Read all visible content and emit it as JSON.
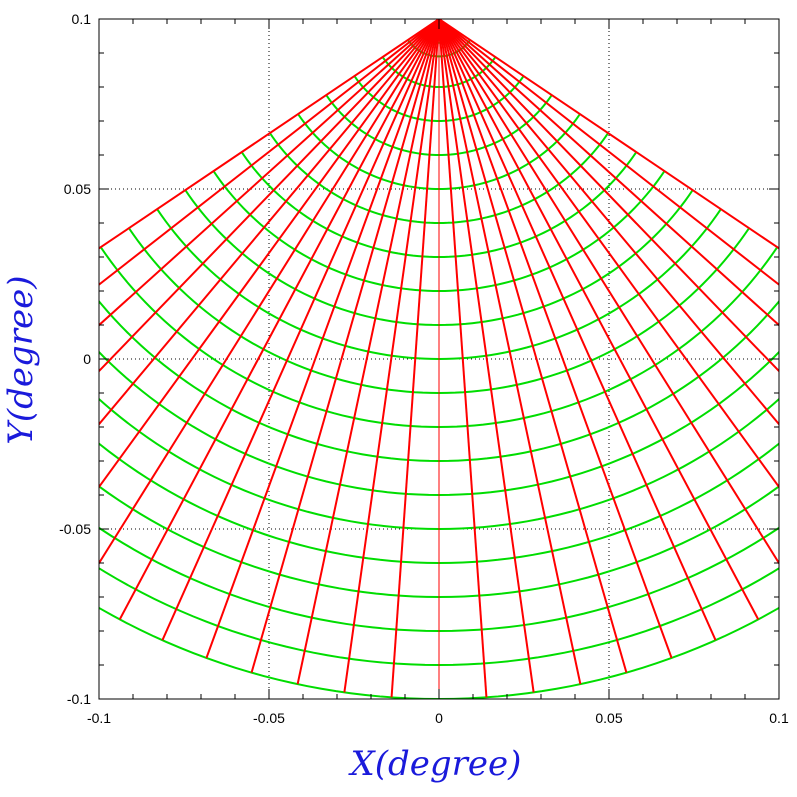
{
  "chart_data": {
    "type": "line",
    "title": "",
    "xlabel": "X(degree)",
    "ylabel": "Y(degree)",
    "xlim": [
      -0.1,
      0.1
    ],
    "ylim": [
      -0.1,
      0.1
    ],
    "grid": true,
    "x_ticks": [
      -0.1,
      -0.05,
      0,
      0.05,
      0.1
    ],
    "x_tick_labels": [
      "-0.1",
      "-0.05",
      "0",
      "0.05",
      "0.1"
    ],
    "y_ticks": [
      -0.1,
      -0.05,
      0,
      0.05,
      0.1
    ],
    "y_tick_labels": [
      "-0.1",
      "-0.05",
      "0",
      "0.05",
      "0.1"
    ],
    "apex": {
      "x": 0,
      "y": 0.1
    },
    "fan_angle_max_deg": 56,
    "radial_lines": {
      "color": "#ff0000",
      "angles_deg": [
        -56,
        -52,
        -48,
        -44,
        -40,
        -36,
        -32,
        -28,
        -24,
        -20,
        -16,
        -12,
        -8,
        -4,
        0,
        4,
        8,
        12,
        16,
        20,
        24,
        28,
        32,
        36,
        40,
        44,
        48,
        52,
        56
      ],
      "length": 0.2
    },
    "arc_lines": {
      "color": "#00dd00",
      "radii": [
        0.007,
        0.011,
        0.02,
        0.03,
        0.04,
        0.05,
        0.06,
        0.07,
        0.08,
        0.09,
        0.1,
        0.11,
        0.12,
        0.13,
        0.14,
        0.15,
        0.16,
        0.17,
        0.18,
        0.19,
        0.2
      ]
    }
  }
}
